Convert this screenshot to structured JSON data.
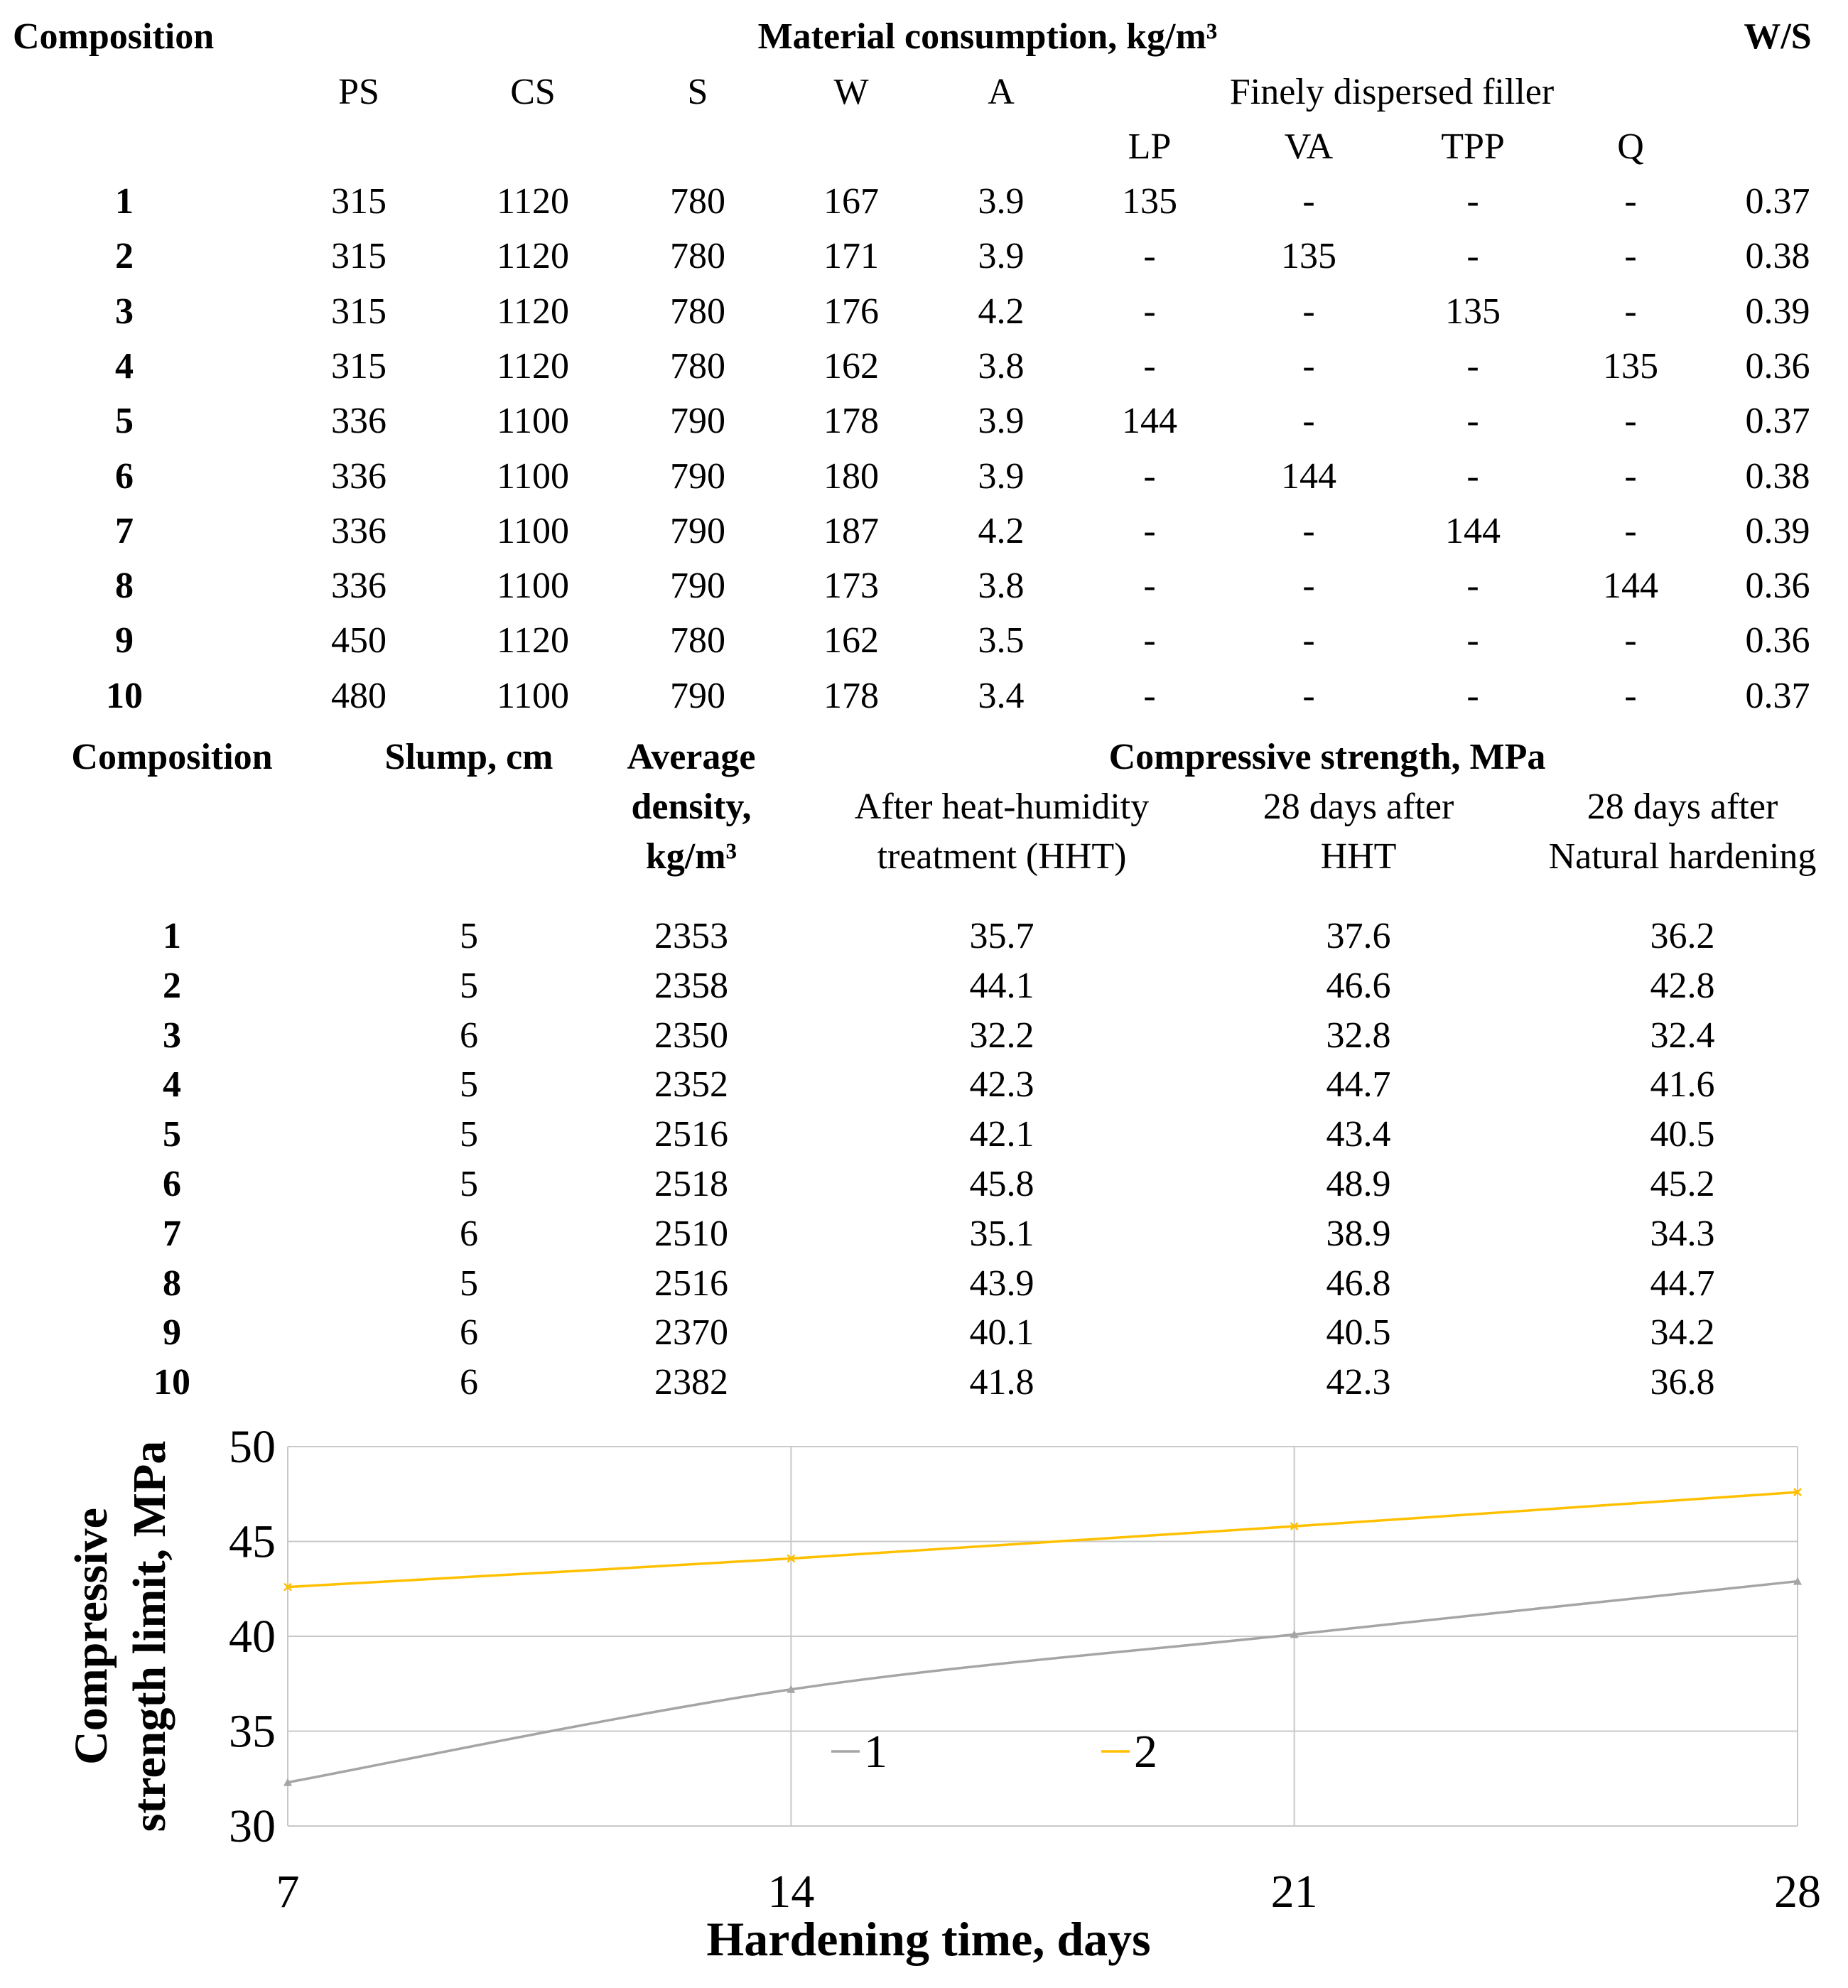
{
  "table1": {
    "header_composition": "Composition",
    "header_material": "Material consumption, kg/m³",
    "header_ws": "W/S",
    "columns": [
      "PS",
      "CS",
      "S",
      "W",
      "A"
    ],
    "filler_header": "Finely dispersed filler",
    "filler_columns": [
      "LP",
      "VA",
      "TPP",
      "Q"
    ],
    "rows": [
      {
        "comp": "1",
        "cells": [
          "315",
          "1120",
          "780",
          "167",
          "3.9",
          "135",
          "-",
          "-",
          "-",
          "0.37"
        ]
      },
      {
        "comp": "2",
        "cells": [
          "315",
          "1120",
          "780",
          "171",
          "3.9",
          "-",
          "135",
          "-",
          "-",
          "0.38"
        ]
      },
      {
        "comp": "3",
        "cells": [
          "315",
          "1120",
          "780",
          "176",
          "4.2",
          "-",
          "-",
          "135",
          "-",
          "0.39"
        ]
      },
      {
        "comp": "4",
        "cells": [
          "315",
          "1120",
          "780",
          "162",
          "3.8",
          "-",
          "-",
          "-",
          "135",
          "0.36"
        ]
      },
      {
        "comp": "5",
        "cells": [
          "336",
          "1100",
          "790",
          "178",
          "3.9",
          "144",
          "-",
          "-",
          "-",
          "0.37"
        ]
      },
      {
        "comp": "6",
        "cells": [
          "336",
          "1100",
          "790",
          "180",
          "3.9",
          "-",
          "144",
          "-",
          "-",
          "0.38"
        ]
      },
      {
        "comp": "7",
        "cells": [
          "336",
          "1100",
          "790",
          "187",
          "4.2",
          "-",
          "-",
          "144",
          "-",
          "0.39"
        ]
      },
      {
        "comp": "8",
        "cells": [
          "336",
          "1100",
          "790",
          "173",
          "3.8",
          "-",
          "-",
          "-",
          "144",
          "0.36"
        ]
      },
      {
        "comp": "9",
        "cells": [
          "450",
          "1120",
          "780",
          "162",
          "3.5",
          "-",
          "-",
          "-",
          "-",
          "0.36"
        ]
      },
      {
        "comp": "10",
        "cells": [
          "480",
          "1100",
          "790",
          "178",
          "3.4",
          "-",
          "-",
          "-",
          "-",
          "0.37"
        ]
      }
    ]
  },
  "table2": {
    "header_composition": "Composition",
    "header_slump": "Slump, cm",
    "header_density": [
      "Average",
      "density,",
      "kg/m³"
    ],
    "header_strength": "Compressive strength, MPa",
    "sub_hht": [
      "After heat-humidity",
      "treatment (HHT)"
    ],
    "sub_28hht": [
      "28 days after",
      "HHT"
    ],
    "sub_28nat": [
      "28 days after",
      "Natural hardening"
    ],
    "rows": [
      {
        "comp": "1",
        "cells": [
          "5",
          "2353",
          "35.7",
          "37.6",
          "36.2"
        ]
      },
      {
        "comp": "2",
        "cells": [
          "5",
          "2358",
          "44.1",
          "46.6",
          "42.8"
        ]
      },
      {
        "comp": "3",
        "cells": [
          "6",
          "2350",
          "32.2",
          "32.8",
          "32.4"
        ]
      },
      {
        "comp": "4",
        "cells": [
          "5",
          "2352",
          "42.3",
          "44.7",
          "41.6"
        ]
      },
      {
        "comp": "5",
        "cells": [
          "5",
          "2516",
          "42.1",
          "43.4",
          "40.5"
        ]
      },
      {
        "comp": "6",
        "cells": [
          "5",
          "2518",
          "45.8",
          "48.9",
          "45.2"
        ]
      },
      {
        "comp": "7",
        "cells": [
          "6",
          "2510",
          "35.1",
          "38.9",
          "34.3"
        ]
      },
      {
        "comp": "8",
        "cells": [
          "5",
          "2516",
          "43.9",
          "46.8",
          "44.7"
        ]
      },
      {
        "comp": "9",
        "cells": [
          "6",
          "2370",
          "40.1",
          "40.5",
          "34.2"
        ]
      },
      {
        "comp": "10",
        "cells": [
          "6",
          "2382",
          "41.8",
          "42.3",
          "36.8"
        ]
      }
    ]
  },
  "chart_data": {
    "type": "line",
    "xlabel": "Hardening time, days",
    "ylabel": "Compressive strength limit, MPa",
    "ylabel_lines": [
      "Compressive",
      "strength limit, MPa"
    ],
    "x": [
      7,
      14,
      21,
      28
    ],
    "x_ticks": [
      "7",
      "14",
      "21",
      "28"
    ],
    "y_ticks": [
      "30",
      "35",
      "40",
      "45",
      "50"
    ],
    "ylim": [
      30,
      50
    ],
    "xlim": [
      7,
      28
    ],
    "grid": true,
    "legend_position": "bottom-center, inside plot",
    "series": [
      {
        "name": "1",
        "values": [
          32.3,
          37.2,
          40.1,
          42.9
        ],
        "color": "#a5a5a5"
      },
      {
        "name": "2",
        "values": [
          42.6,
          44.1,
          45.8,
          47.6
        ],
        "color": "#ffc000"
      }
    ]
  }
}
